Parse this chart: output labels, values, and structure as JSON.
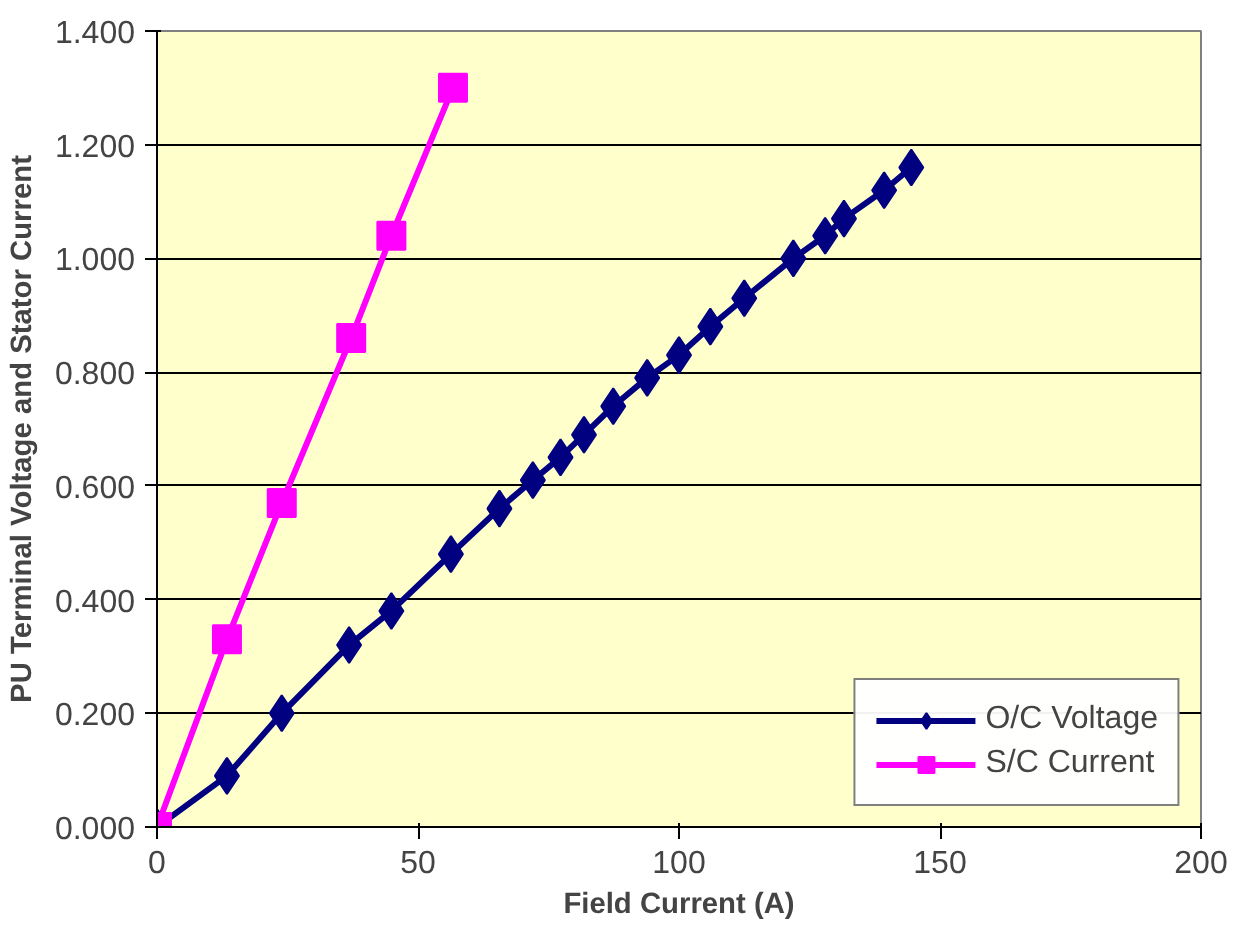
{
  "chart_data": {
    "type": "line",
    "xlabel": "Field Current (A)",
    "ylabel": "PU Terminal Voltage and Stator Current",
    "xlim": [
      0,
      200
    ],
    "xticks": [
      0,
      50,
      100,
      150,
      200
    ],
    "ylim": [
      0,
      1.4
    ],
    "yticks": [
      {
        "value": 0,
        "label": "0.000"
      },
      {
        "value": 0.2,
        "label": "0.200"
      },
      {
        "value": 0.4,
        "label": "0.400"
      },
      {
        "value": 0.6,
        "label": "0.600"
      },
      {
        "value": 0.8,
        "label": "0.800"
      },
      {
        "value": 1.0,
        "label": "1.000"
      },
      {
        "value": 1.2,
        "label": "1.200"
      },
      {
        "value": 1.4,
        "label": "1.400"
      }
    ],
    "grid": "y",
    "legend": "bottom right",
    "series": [
      {
        "name": "O/C Voltage",
        "color": "#000080",
        "marker": "diamond",
        "x": [
          0,
          13.4,
          23.9,
          36.8,
          44.9,
          56.3,
          65.6,
          72,
          77.3,
          81.8,
          87.4,
          93.9,
          100,
          106,
          112.5,
          121.9,
          128,
          131.6,
          139.3,
          144.5
        ],
        "values": [
          0,
          0.09,
          0.2,
          0.32,
          0.38,
          0.48,
          0.56,
          0.61,
          0.65,
          0.69,
          0.74,
          0.79,
          0.83,
          0.88,
          0.93,
          1.0,
          1.04,
          1.07,
          1.12,
          1.16
        ]
      },
      {
        "name": "S/C Current",
        "color": "#ff00ff",
        "marker": "square",
        "x": [
          0,
          13.4,
          23.9,
          37.2,
          44.9,
          56.7
        ],
        "values": [
          0,
          0.33,
          0.57,
          0.86,
          1.04,
          1.3
        ]
      }
    ]
  }
}
